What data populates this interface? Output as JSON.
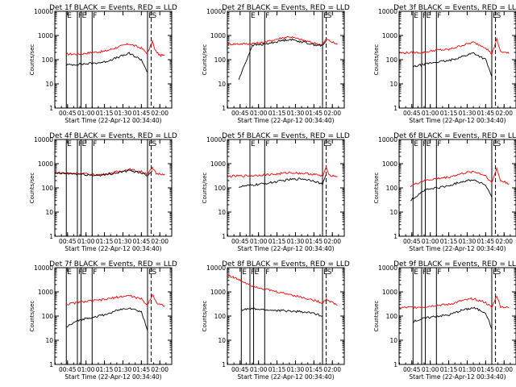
{
  "chart_data": [
    {
      "type": "line",
      "title": "Det 1f BLACK = Events, RED = LLD",
      "xlabel": "Start Time (22-Apr-12 00:34:40)",
      "ylabel": "Counts/sec",
      "x_ticks": [
        "00:45",
        "01:00",
        "01:15",
        "01:30",
        "01:45",
        "02:00"
      ],
      "y_ticks": [
        "1",
        "10",
        "100",
        "1000",
        "10000"
      ],
      "yscale": "log",
      "ylim": [
        1,
        10000
      ],
      "marks": [
        {
          "label": "E",
          "t": "00:44"
        },
        {
          "label": "F",
          "t": "00:53"
        },
        {
          "label": "E",
          "t": "00:56"
        },
        {
          "label": "F",
          "t": "01:05"
        },
        {
          "label": "E",
          "t": "01:50"
        },
        {
          "label": "S",
          "t": "01:53"
        }
      ],
      "series": [
        {
          "color": "#ff0000",
          "x": [
            "00:44",
            "00:55",
            "01:05",
            "01:15",
            "01:25",
            "01:35",
            "01:45",
            "01:50",
            "01:54",
            "01:56",
            "02:00",
            "02:04"
          ],
          "values": [
            170,
            170,
            200,
            220,
            320,
            450,
            300,
            180,
            580,
            250,
            150,
            150
          ]
        },
        {
          "color": "#000000",
          "x": [
            "00:44",
            "00:55",
            "01:05",
            "01:15",
            "01:25",
            "01:35",
            "01:45",
            "01:50"
          ],
          "values": [
            60,
            65,
            70,
            80,
            120,
            180,
            100,
            30
          ]
        }
      ]
    },
    {
      "type": "line",
      "title": "Det 2f BLACK = Events, RED = LLD",
      "xlabel": "Start Time (22-Apr-12 00:34:40)",
      "ylabel": "Counts/sec",
      "x_ticks": [
        "00:45",
        "01:00",
        "01:15",
        "01:30",
        "01:45",
        "02:00"
      ],
      "y_ticks": [
        "1",
        "10",
        "100",
        "1000",
        "10000"
      ],
      "yscale": "log",
      "ylim": [
        1,
        10000
      ],
      "marks": [
        {
          "label": "E",
          "t": "00:53"
        },
        {
          "label": "F",
          "t": "01:05"
        },
        {
          "label": "E",
          "t": "01:52"
        },
        {
          "label": "S",
          "t": "01:55"
        }
      ],
      "series": [
        {
          "color": "#ff0000",
          "x": [
            "00:35",
            "00:55",
            "01:05",
            "01:15",
            "01:25",
            "01:35",
            "01:45",
            "01:52",
            "01:55",
            "02:04"
          ],
          "values": [
            440,
            460,
            520,
            720,
            900,
            660,
            480,
            420,
            700,
            420
          ]
        },
        {
          "color": "#000000",
          "x": [
            "00:44",
            "00:55",
            "01:05",
            "01:15",
            "01:25",
            "01:35",
            "01:45",
            "01:52",
            "01:55"
          ],
          "values": [
            15,
            400,
            430,
            560,
            700,
            550,
            420,
            380,
            600
          ]
        }
      ]
    },
    {
      "type": "line",
      "title": "Det 3f BLACK = Events, RED = LLD",
      "xlabel": "Start Time (22-Apr-12 00:34:40)",
      "ylabel": "Counts/sec",
      "x_ticks": [
        "00:45",
        "01:00",
        "01:15",
        "01:30",
        "01:45",
        "02:00"
      ],
      "y_ticks": [
        "1",
        "10",
        "100",
        "1000",
        "10000"
      ],
      "yscale": "log",
      "ylim": [
        1,
        10000
      ],
      "marks": [
        {
          "label": "E",
          "t": "00:46"
        },
        {
          "label": "F",
          "t": "00:53"
        },
        {
          "label": "E",
          "t": "00:56"
        },
        {
          "label": "F",
          "t": "01:05"
        },
        {
          "label": "E",
          "t": "01:50"
        },
        {
          "label": "S",
          "t": "01:53"
        }
      ],
      "series": [
        {
          "color": "#ff0000",
          "x": [
            "00:35",
            "00:55",
            "01:05",
            "01:15",
            "01:25",
            "01:35",
            "01:45",
            "01:50",
            "01:54",
            "01:57",
            "02:04"
          ],
          "values": [
            190,
            200,
            250,
            260,
            380,
            520,
            320,
            170,
            700,
            220,
            180
          ]
        },
        {
          "color": "#000000",
          "x": [
            "00:46",
            "00:55",
            "01:05",
            "01:15",
            "01:25",
            "01:35",
            "01:45",
            "01:50"
          ],
          "values": [
            50,
            65,
            80,
            90,
            130,
            190,
            100,
            20
          ]
        }
      ]
    },
    {
      "type": "line",
      "title": "Det 4f BLACK = Events, RED = LLD",
      "xlabel": "Start Time (22-Apr-12 00:34:40)",
      "ylabel": "Counts/sec",
      "x_ticks": [
        "00:45",
        "01:00",
        "01:15",
        "01:30",
        "01:45",
        "02:00"
      ],
      "y_ticks": [
        "1",
        "10",
        "100",
        "1000",
        "10000"
      ],
      "yscale": "log",
      "ylim": [
        1,
        10000
      ],
      "marks": [
        {
          "label": "E",
          "t": "00:44"
        },
        {
          "label": "F",
          "t": "00:53"
        },
        {
          "label": "E",
          "t": "00:56"
        },
        {
          "label": "F",
          "t": "01:05"
        },
        {
          "label": "E",
          "t": "01:50"
        },
        {
          "label": "S",
          "t": "01:53"
        }
      ],
      "series": [
        {
          "color": "#ff0000",
          "x": [
            "00:35",
            "00:55",
            "01:05",
            "01:15",
            "01:25",
            "01:35",
            "01:45",
            "01:50",
            "01:54",
            "01:57",
            "02:04"
          ],
          "values": [
            420,
            400,
            350,
            360,
            460,
            580,
            470,
            380,
            650,
            390,
            370
          ]
        },
        {
          "color": "#000000",
          "x": [
            "00:35",
            "00:55",
            "01:05",
            "01:15",
            "01:25",
            "01:35",
            "01:45",
            "01:50",
            "01:54"
          ],
          "values": [
            400,
            370,
            330,
            340,
            420,
            520,
            420,
            330,
            520
          ]
        }
      ]
    },
    {
      "type": "line",
      "title": "Det 5f BLACK = Events, RED = LLD",
      "xlabel": "Start Time (22-Apr-12 00:34:40)",
      "ylabel": "Counts/sec",
      "x_ticks": [
        "00:45",
        "01:00",
        "01:15",
        "01:30",
        "01:45",
        "02:00"
      ],
      "y_ticks": [
        "1",
        "10",
        "100",
        "1000",
        "10000"
      ],
      "yscale": "log",
      "ylim": [
        1,
        10000
      ],
      "marks": [
        {
          "label": "E",
          "t": "00:53"
        },
        {
          "label": "F",
          "t": "01:05"
        },
        {
          "label": "E",
          "t": "01:52"
        },
        {
          "label": "S",
          "t": "01:55"
        }
      ],
      "series": [
        {
          "color": "#ff0000",
          "x": [
            "00:35",
            "00:55",
            "01:05",
            "01:15",
            "01:25",
            "01:35",
            "01:45",
            "01:52",
            "01:55",
            "01:58",
            "02:04"
          ],
          "values": [
            300,
            320,
            350,
            370,
            430,
            400,
            370,
            300,
            650,
            330,
            300
          ]
        },
        {
          "color": "#000000",
          "x": [
            "00:44",
            "00:55",
            "01:05",
            "01:15",
            "01:25",
            "01:35",
            "01:45",
            "01:52",
            "01:55"
          ],
          "values": [
            110,
            130,
            150,
            180,
            220,
            240,
            200,
            140,
            350
          ]
        }
      ]
    },
    {
      "type": "line",
      "title": "Det 6f BLACK = Events, RED = LLD",
      "xlabel": "Start Time (22-Apr-12 00:34:40)",
      "ylabel": "Counts/sec",
      "x_ticks": [
        "00:45",
        "01:00",
        "01:15",
        "01:30",
        "01:45",
        "02:00"
      ],
      "y_ticks": [
        "1",
        "10",
        "100",
        "1000",
        "10000"
      ],
      "yscale": "log",
      "ylim": [
        1,
        10000
      ],
      "marks": [
        {
          "label": "E",
          "t": "00:46"
        },
        {
          "label": "F",
          "t": "00:53"
        },
        {
          "label": "E",
          "t": "00:56"
        },
        {
          "label": "F",
          "t": "01:05"
        },
        {
          "label": "E",
          "t": "01:50"
        },
        {
          "label": "S",
          "t": "01:53"
        }
      ],
      "series": [
        {
          "color": "#ff0000",
          "x": [
            "00:44",
            "00:55",
            "01:05",
            "01:15",
            "01:25",
            "01:35",
            "01:45",
            "01:50",
            "01:54",
            "01:57",
            "02:04"
          ],
          "values": [
            120,
            200,
            240,
            280,
            380,
            480,
            320,
            160,
            650,
            200,
            150
          ]
        },
        {
          "color": "#000000",
          "x": [
            "00:44",
            "00:55",
            "01:05",
            "01:15",
            "01:25",
            "01:35",
            "01:45",
            "01:50"
          ],
          "values": [
            30,
            80,
            100,
            120,
            180,
            220,
            130,
            40
          ]
        }
      ]
    },
    {
      "type": "line",
      "title": "Det 7f BLACK = Events, RED = LLD",
      "xlabel": "Start Time (22-Apr-12 00:34:40)",
      "ylabel": "Counts/sec",
      "x_ticks": [
        "00:45",
        "01:00",
        "01:15",
        "01:30",
        "01:45",
        "02:00"
      ],
      "y_ticks": [
        "1",
        "10",
        "100",
        "1000",
        "10000"
      ],
      "yscale": "log",
      "ylim": [
        1,
        10000
      ],
      "marks": [
        {
          "label": "E",
          "t": "00:44"
        },
        {
          "label": "F",
          "t": "00:53"
        },
        {
          "label": "E",
          "t": "00:56"
        },
        {
          "label": "F",
          "t": "01:05"
        },
        {
          "label": "E",
          "t": "01:50"
        },
        {
          "label": "S",
          "t": "01:53"
        }
      ],
      "series": [
        {
          "color": "#ff0000",
          "x": [
            "00:44",
            "00:55",
            "01:05",
            "01:15",
            "01:25",
            "01:35",
            "01:45",
            "01:50",
            "01:54",
            "01:58",
            "02:04"
          ],
          "values": [
            300,
            380,
            420,
            480,
            600,
            700,
            500,
            280,
            800,
            330,
            260
          ]
        },
        {
          "color": "#000000",
          "x": [
            "00:44",
            "00:55",
            "01:05",
            "01:15",
            "01:25",
            "01:35",
            "01:45",
            "01:50"
          ],
          "values": [
            35,
            70,
            90,
            110,
            170,
            220,
            150,
            25
          ]
        }
      ]
    },
    {
      "type": "line",
      "title": "Det 8f BLACK = Events, RED = LLD",
      "xlabel": "Start Time (22-Apr-12 00:34:40)",
      "ylabel": "Counts/sec",
      "x_ticks": [
        "00:45",
        "01:00",
        "01:15",
        "01:30",
        "01:45",
        "02:00"
      ],
      "y_ticks": [
        "1",
        "10",
        "100",
        "1000",
        "10000"
      ],
      "yscale": "log",
      "ylim": [
        1,
        10000
      ],
      "marks": [
        {
          "label": "E",
          "t": "00:46"
        },
        {
          "label": "F",
          "t": "00:53"
        },
        {
          "label": "E",
          "t": "00:56"
        },
        {
          "label": "F",
          "t": "01:05"
        },
        {
          "label": "E",
          "t": "01:52"
        },
        {
          "label": "S",
          "t": "01:55"
        }
      ],
      "series": [
        {
          "color": "#ff0000",
          "x": [
            "00:35",
            "00:45",
            "00:55",
            "01:05",
            "01:15",
            "01:25",
            "01:35",
            "01:45",
            "01:52",
            "01:55",
            "02:04"
          ],
          "values": [
            5000,
            3000,
            1800,
            1300,
            1000,
            800,
            600,
            450,
            350,
            500,
            280
          ]
        },
        {
          "color": "#000000",
          "x": [
            "00:46",
            "00:55",
            "01:05",
            "01:15",
            "01:25",
            "01:35",
            "01:45",
            "01:52"
          ],
          "values": [
            180,
            200,
            180,
            170,
            160,
            150,
            130,
            100
          ]
        }
      ]
    },
    {
      "type": "line",
      "title": "Det 9f BLACK = Events, RED = LLD",
      "xlabel": "Start Time (22-Apr-12 00:34:40)",
      "ylabel": "Counts/sec",
      "x_ticks": [
        "00:45",
        "01:00",
        "01:15",
        "01:30",
        "01:45",
        "02:00"
      ],
      "y_ticks": [
        "1",
        "10",
        "100",
        "1000",
        "10000"
      ],
      "yscale": "log",
      "ylim": [
        1,
        10000
      ],
      "marks": [
        {
          "label": "E",
          "t": "00:46"
        },
        {
          "label": "F",
          "t": "00:53"
        },
        {
          "label": "E",
          "t": "00:56"
        },
        {
          "label": "F",
          "t": "01:05"
        },
        {
          "label": "E",
          "t": "01:50"
        },
        {
          "label": "S",
          "t": "01:53"
        }
      ],
      "series": [
        {
          "color": "#ff0000",
          "x": [
            "00:35",
            "00:55",
            "01:05",
            "01:15",
            "01:25",
            "01:35",
            "01:45",
            "01:50",
            "01:54",
            "01:57",
            "02:04"
          ],
          "values": [
            220,
            240,
            280,
            300,
            420,
            520,
            360,
            220,
            700,
            250,
            220
          ]
        },
        {
          "color": "#000000",
          "x": [
            "00:46",
            "00:55",
            "01:05",
            "01:15",
            "01:25",
            "01:35",
            "01:45",
            "01:50"
          ],
          "values": [
            60,
            80,
            100,
            110,
            170,
            220,
            140,
            30
          ]
        }
      ]
    }
  ]
}
